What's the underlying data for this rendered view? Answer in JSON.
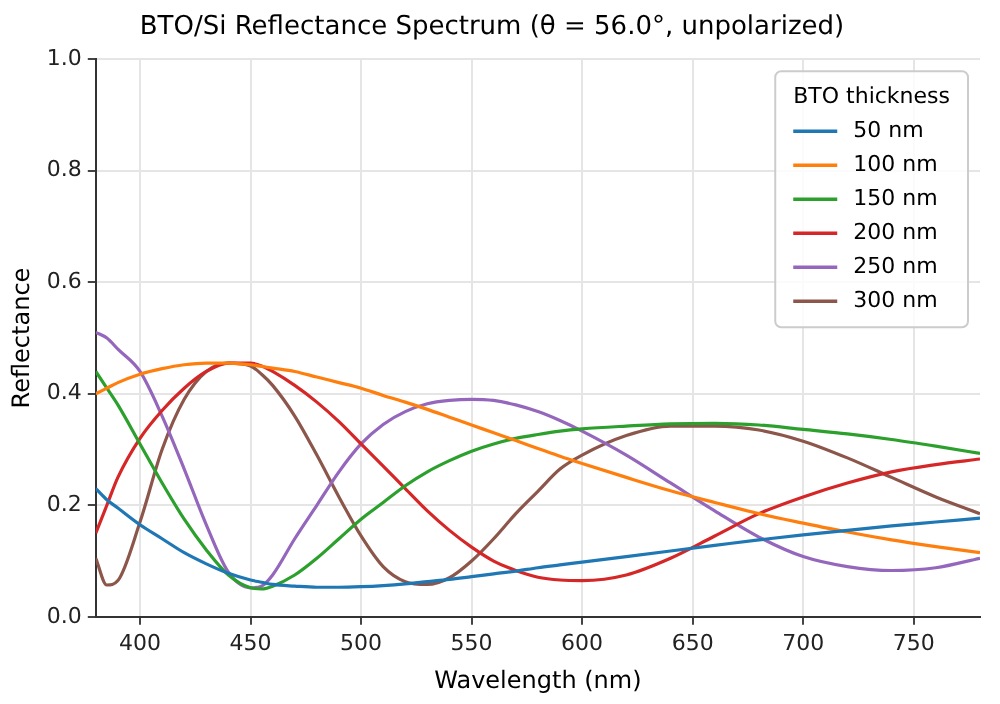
{
  "chart_data": {
    "type": "line",
    "title": "BTO/Si Reflectance Spectrum (θ = 56.0°, unpolarized)",
    "xlabel": "Wavelength (nm)",
    "ylabel": "Reflectance",
    "legend_title": "BTO thickness",
    "legend": "top right",
    "grid": true,
    "marker": "none",
    "line_style": "solid",
    "xlim": [
      380,
      780
    ],
    "xticks": [
      400,
      450,
      500,
      550,
      600,
      650,
      700,
      750
    ],
    "ylim": [
      0,
      1
    ],
    "yticks": [
      {
        "value": 0,
        "label": "0.0"
      },
      0.2,
      0.4,
      0.6,
      0.8,
      {
        "value": 1,
        "label": "1.0"
      }
    ],
    "x": [
      380,
      385,
      390,
      400,
      410,
      420,
      430,
      440,
      450,
      455,
      460,
      470,
      480,
      490,
      500,
      510,
      520,
      530,
      540,
      550,
      560,
      570,
      580,
      590,
      600,
      620,
      640,
      660,
      680,
      700,
      720,
      740,
      760,
      780
    ],
    "series": [
      {
        "name": "50 nm",
        "color": "#1f77b4",
        "values": [
          0.23,
          0.21,
          0.195,
          0.165,
          0.14,
          0.115,
          0.095,
          0.078,
          0.066,
          0.062,
          0.058,
          0.055,
          0.053,
          0.053,
          0.054,
          0.056,
          0.059,
          0.063,
          0.067,
          0.072,
          0.077,
          0.082,
          0.088,
          0.093,
          0.098,
          0.108,
          0.118,
          0.128,
          0.138,
          0.147,
          0.155,
          0.163,
          0.17,
          0.177
        ]
      },
      {
        "name": "100 nm",
        "color": "#ff7f0e",
        "values": [
          0.4,
          0.41,
          0.42,
          0.435,
          0.445,
          0.452,
          0.455,
          0.455,
          0.452,
          0.449,
          0.446,
          0.44,
          0.43,
          0.42,
          0.41,
          0.397,
          0.385,
          0.372,
          0.358,
          0.344,
          0.33,
          0.316,
          0.302,
          0.288,
          0.275,
          0.25,
          0.226,
          0.205,
          0.185,
          0.168,
          0.152,
          0.138,
          0.126,
          0.115
        ]
      },
      {
        "name": "150 nm",
        "color": "#2ca02c",
        "values": [
          0.44,
          0.41,
          0.38,
          0.31,
          0.24,
          0.175,
          0.12,
          0.075,
          0.052,
          0.05,
          0.055,
          0.075,
          0.105,
          0.14,
          0.175,
          0.205,
          0.235,
          0.26,
          0.28,
          0.297,
          0.31,
          0.32,
          0.327,
          0.333,
          0.337,
          0.342,
          0.346,
          0.347,
          0.344,
          0.336,
          0.328,
          0.318,
          0.306,
          0.293
        ]
      },
      {
        "name": "200 nm",
        "color": "#d62728",
        "values": [
          0.15,
          0.2,
          0.25,
          0.32,
          0.37,
          0.41,
          0.44,
          0.455,
          0.455,
          0.45,
          0.44,
          0.415,
          0.385,
          0.35,
          0.31,
          0.27,
          0.23,
          0.19,
          0.155,
          0.125,
          0.1,
          0.083,
          0.071,
          0.066,
          0.065,
          0.075,
          0.105,
          0.145,
          0.185,
          0.215,
          0.24,
          0.26,
          0.273,
          0.283
        ]
      },
      {
        "name": "250 nm",
        "color": "#9467bd",
        "values": [
          0.51,
          0.5,
          0.48,
          0.44,
          0.36,
          0.265,
          0.165,
          0.08,
          0.052,
          0.055,
          0.075,
          0.14,
          0.2,
          0.26,
          0.31,
          0.345,
          0.368,
          0.382,
          0.388,
          0.39,
          0.388,
          0.38,
          0.368,
          0.352,
          0.333,
          0.29,
          0.24,
          0.19,
          0.143,
          0.108,
          0.09,
          0.083,
          0.088,
          0.105
        ]
      },
      {
        "name": "300 nm",
        "color": "#8c564b",
        "values": [
          0.105,
          0.057,
          0.065,
          0.17,
          0.3,
          0.39,
          0.44,
          0.455,
          0.45,
          0.435,
          0.415,
          0.36,
          0.29,
          0.215,
          0.145,
          0.09,
          0.063,
          0.058,
          0.07,
          0.1,
          0.14,
          0.185,
          0.225,
          0.265,
          0.29,
          0.325,
          0.342,
          0.342,
          0.335,
          0.315,
          0.285,
          0.25,
          0.215,
          0.185
        ]
      }
    ]
  }
}
